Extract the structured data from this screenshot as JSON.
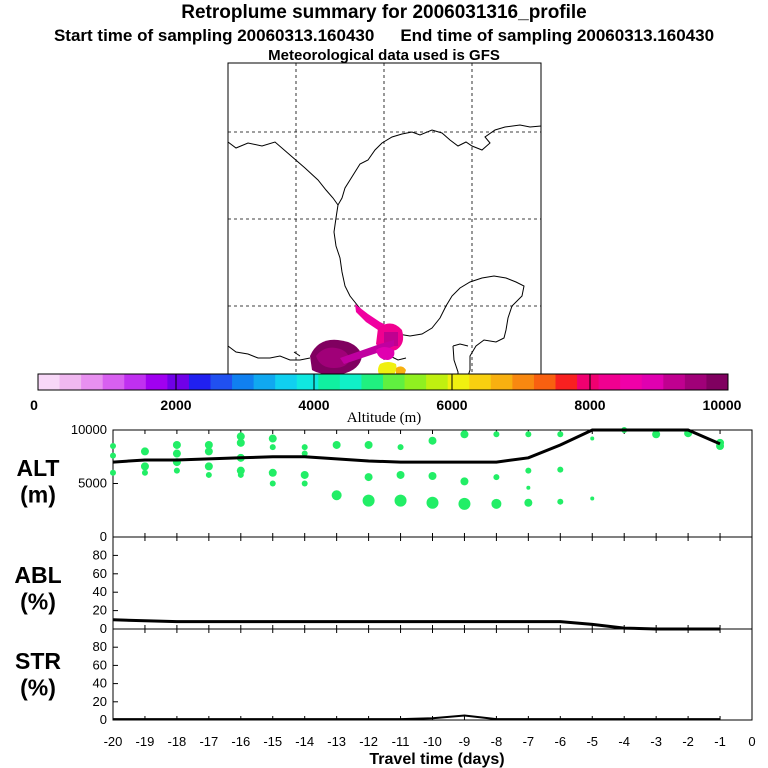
{
  "header": {
    "title": "Retroplume summary for 2006031316_profile",
    "start": "Start time of sampling 20060313.160430",
    "end": "End time of sampling 20060313.160430",
    "met": "Meteorological data used is GFS"
  },
  "colorbar": {
    "label": "Altitude (m)",
    "tick_labels": [
      "0",
      "2000",
      "4000",
      "6000",
      "8000",
      "10000"
    ],
    "colors": [
      "#f8d8f8",
      "#f0b8f0",
      "#e890f0",
      "#d860f0",
      "#c030f0",
      "#a000f0",
      "#7000e8",
      "#2020f0",
      "#2050f0",
      "#1080f0",
      "#10a8f0",
      "#10d0f0",
      "#10e8e0",
      "#10f0a0",
      "#10f0c8",
      "#20f080",
      "#60f040",
      "#90f020",
      "#c0f010",
      "#f0f010",
      "#f8d010",
      "#f8b010",
      "#f88810",
      "#f86010",
      "#f82020",
      "#f00070",
      "#f00090",
      "#f000a8",
      "#e000b0",
      "#c00090",
      "#a00078",
      "#800060"
    ]
  },
  "chart_data": [
    {
      "type": "scatter",
      "panel": "ALT",
      "ylabel": "ALT\n(m)",
      "ylim": [
        0,
        10000
      ],
      "y_ticks": [
        "10000",
        "5000",
        "0"
      ],
      "xlim": [
        -20,
        0
      ],
      "mean_line": {
        "x": [
          -20,
          -19,
          -18,
          -17,
          -16,
          -15,
          -14,
          -13,
          -12,
          -11,
          -10,
          -9,
          -8,
          -7,
          -6,
          -5,
          -4,
          -3,
          -2,
          -1
        ],
        "y": [
          7000,
          7200,
          7200,
          7300,
          7400,
          7500,
          7500,
          7300,
          7100,
          7000,
          7000,
          7000,
          7000,
          7400,
          8600,
          10000,
          10100,
          10100,
          10000,
          8700
        ]
      },
      "points": [
        {
          "x": -20,
          "y": 8500,
          "s": 3
        },
        {
          "x": -20,
          "y": 7600,
          "s": 3
        },
        {
          "x": -20,
          "y": 6000,
          "s": 3
        },
        {
          "x": -19,
          "y": 8000,
          "s": 4
        },
        {
          "x": -19,
          "y": 6600,
          "s": 4
        },
        {
          "x": -19,
          "y": 6000,
          "s": 3
        },
        {
          "x": -18,
          "y": 8600,
          "s": 4
        },
        {
          "x": -18,
          "y": 7800,
          "s": 4
        },
        {
          "x": -18,
          "y": 7000,
          "s": 4
        },
        {
          "x": -18,
          "y": 6200,
          "s": 3
        },
        {
          "x": -17,
          "y": 8600,
          "s": 4
        },
        {
          "x": -17,
          "y": 8000,
          "s": 4
        },
        {
          "x": -17,
          "y": 6600,
          "s": 4
        },
        {
          "x": -17,
          "y": 5800,
          "s": 3
        },
        {
          "x": -16,
          "y": 9400,
          "s": 4
        },
        {
          "x": -16,
          "y": 8800,
          "s": 4
        },
        {
          "x": -16,
          "y": 7400,
          "s": 4
        },
        {
          "x": -16,
          "y": 6200,
          "s": 4
        },
        {
          "x": -16,
          "y": 5800,
          "s": 3
        },
        {
          "x": -15,
          "y": 9200,
          "s": 4
        },
        {
          "x": -15,
          "y": 8400,
          "s": 3
        },
        {
          "x": -15,
          "y": 6000,
          "s": 4
        },
        {
          "x": -15,
          "y": 5000,
          "s": 3
        },
        {
          "x": -14,
          "y": 8400,
          "s": 3
        },
        {
          "x": -14,
          "y": 7800,
          "s": 3
        },
        {
          "x": -14,
          "y": 5800,
          "s": 4
        },
        {
          "x": -14,
          "y": 5000,
          "s": 3
        },
        {
          "x": -13,
          "y": 8600,
          "s": 4
        },
        {
          "x": -13,
          "y": 3900,
          "s": 5
        },
        {
          "x": -12,
          "y": 8600,
          "s": 4
        },
        {
          "x": -12,
          "y": 5600,
          "s": 4
        },
        {
          "x": -12,
          "y": 3400,
          "s": 6
        },
        {
          "x": -11,
          "y": 8400,
          "s": 3
        },
        {
          "x": -11,
          "y": 5800,
          "s": 4
        },
        {
          "x": -11,
          "y": 3400,
          "s": 6
        },
        {
          "x": -10,
          "y": 9000,
          "s": 4
        },
        {
          "x": -10,
          "y": 5700,
          "s": 4
        },
        {
          "x": -10,
          "y": 3200,
          "s": 6
        },
        {
          "x": -9,
          "y": 9600,
          "s": 4
        },
        {
          "x": -9,
          "y": 5200,
          "s": 4
        },
        {
          "x": -9,
          "y": 3100,
          "s": 6
        },
        {
          "x": -8,
          "y": 9600,
          "s": 3
        },
        {
          "x": -8,
          "y": 5600,
          "s": 3
        },
        {
          "x": -8,
          "y": 3100,
          "s": 5
        },
        {
          "x": -7,
          "y": 9600,
          "s": 3
        },
        {
          "x": -7,
          "y": 6200,
          "s": 3
        },
        {
          "x": -7,
          "y": 4600,
          "s": 2
        },
        {
          "x": -7,
          "y": 3200,
          "s": 4
        },
        {
          "x": -6,
          "y": 9600,
          "s": 3
        },
        {
          "x": -6,
          "y": 6300,
          "s": 3
        },
        {
          "x": -6,
          "y": 3300,
          "s": 3
        },
        {
          "x": -5,
          "y": 9200,
          "s": 2
        },
        {
          "x": -5,
          "y": 3600,
          "s": 2
        },
        {
          "x": -4,
          "y": 10000,
          "s": 3
        },
        {
          "x": -3,
          "y": 9600,
          "s": 4
        },
        {
          "x": -2,
          "y": 9700,
          "s": 4
        },
        {
          "x": -1,
          "y": 8800,
          "s": 4
        },
        {
          "x": -1,
          "y": 8500,
          "s": 4
        }
      ]
    },
    {
      "type": "line",
      "panel": "ABL",
      "ylabel": "ABL\n(%)",
      "ylim": [
        0,
        100
      ],
      "y_ticks": [
        "80",
        "60",
        "40",
        "20",
        "0"
      ],
      "x": [
        -20,
        -19,
        -18,
        -17,
        -16,
        -15,
        -14,
        -13,
        -12,
        -11,
        -10,
        -9,
        -8,
        -7,
        -6,
        -5,
        -4,
        -3,
        -2,
        -1
      ],
      "values": [
        10,
        9,
        8,
        8,
        8,
        8,
        8,
        8,
        8,
        8,
        8,
        8,
        8,
        8,
        8,
        5,
        1,
        0,
        0,
        0
      ]
    },
    {
      "type": "line",
      "panel": "STR",
      "ylabel": "STR\n(%)",
      "ylim": [
        0,
        100
      ],
      "y_ticks": [
        "80",
        "60",
        "40",
        "20",
        "0"
      ],
      "x": [
        -20,
        -19,
        -18,
        -17,
        -16,
        -15,
        -14,
        -13,
        -12,
        -11,
        -10,
        -9,
        -8,
        -7,
        -6,
        -5,
        -4,
        -3,
        -2,
        -1
      ],
      "values": [
        1,
        1,
        1,
        1,
        1,
        1,
        1,
        1,
        1,
        1,
        2,
        5,
        1,
        1,
        1,
        1,
        1,
        1,
        1,
        1
      ]
    }
  ],
  "xaxis": {
    "label": "Travel time (days)",
    "ticks": [
      "-20",
      "-19",
      "-18",
      "-17",
      "-16",
      "-15",
      "-14",
      "-13",
      "-12",
      "-11",
      "-10",
      "-9",
      "-8",
      "-7",
      "-6",
      "-5",
      "-4",
      "-3",
      "-2",
      "-1",
      "0"
    ]
  }
}
